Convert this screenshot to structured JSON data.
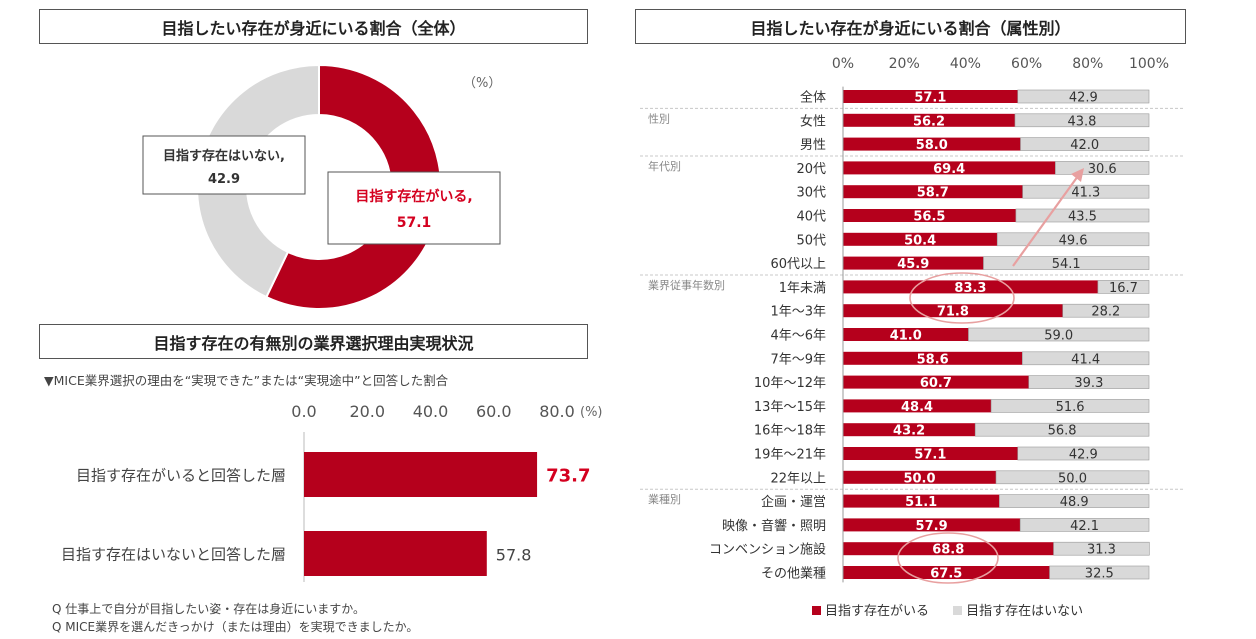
{
  "colors": {
    "yes": "#b5001c",
    "no": "#d9d9d9",
    "highlight": "#e8a0a0",
    "red_text": "#d4001f"
  },
  "donut": {
    "title": "目指したい存在が身近にいる割合（全体）",
    "unit": "（%）",
    "yes_label": "目指す存在がいる,",
    "yes_value": "57.1",
    "no_label": "目指す存在はいない,",
    "no_value": "42.9"
  },
  "reason": {
    "title": "目指す存在の有無別の業界選択理由実現状況",
    "subtitle": "▼MICE業界選択の理由を“実現できた”または“実現途中”と回答した割合",
    "unit": "(%)"
  },
  "questions": {
    "q1": "Q 仕事上で自分が目指したい姿・存在は身近にいますか。",
    "q2": "Q MICE業界を選んだきっかけ（または理由）を実現できましたか。"
  },
  "attr": {
    "title": "目指したい存在が身近にいる割合（属性別）",
    "legend_yes": "目指す存在がいる",
    "legend_no": "目指す存在はいない"
  },
  "chart_data": [
    {
      "type": "pie",
      "title": "目指したい存在が身近にいる割合（全体）",
      "categories": [
        "目指す存在がいる",
        "目指す存在はいない"
      ],
      "values": [
        57.1,
        42.9
      ]
    },
    {
      "type": "bar",
      "title": "目指す存在の有無別の業界選択理由実現状況",
      "categories": [
        "目指す存在がいると回答した層",
        "目指す存在はいないと回答した層"
      ],
      "values": [
        73.7,
        57.8
      ],
      "labels": [
        "73.7",
        "57.8"
      ],
      "xlim": [
        0,
        80
      ],
      "ticks": [
        "0.0",
        "20.0",
        "40.0",
        "60.0",
        "80.0"
      ]
    },
    {
      "type": "bar",
      "title": "目指したい存在が身近にいる割合（属性別）",
      "xlim": [
        0,
        100
      ],
      "ticks": [
        "0%",
        "20%",
        "40%",
        "60%",
        "80%",
        "100%"
      ],
      "groups": [
        "性別",
        "年代別",
        "業界従事年数別",
        "業種別"
      ],
      "categories": [
        "全体",
        "女性",
        "男性",
        "20代",
        "30代",
        "40代",
        "50代",
        "60代以上",
        "1年未満",
        "1年～3年",
        "4年～6年",
        "7年～9年",
        "10年～12年",
        "13年～15年",
        "16年～18年",
        "19年～21年",
        "22年以上",
        "企画・運営",
        "映像・音響・照明",
        "コンベンション施設",
        "その他業種"
      ],
      "series": [
        {
          "name": "目指す存在がいる",
          "values": [
            57.1,
            56.2,
            58.0,
            69.4,
            58.7,
            56.5,
            50.4,
            45.9,
            83.3,
            71.8,
            41.0,
            58.6,
            60.7,
            48.4,
            43.2,
            57.1,
            50.0,
            51.1,
            57.9,
            68.8,
            67.5
          ],
          "labels": [
            "57.1",
            "56.2",
            "58.0",
            "69.4",
            "58.7",
            "56.5",
            "50.4",
            "45.9",
            "83.3",
            "71.8",
            "41.0",
            "58.6",
            "60.7",
            "48.4",
            "43.2",
            "57.1",
            "50.0",
            "51.1",
            "57.9",
            "68.8",
            "67.5"
          ]
        },
        {
          "name": "目指す存在はいない",
          "values": [
            42.9,
            43.8,
            42.0,
            30.6,
            41.3,
            43.5,
            49.6,
            54.1,
            16.7,
            28.2,
            59.0,
            41.4,
            39.3,
            51.6,
            56.8,
            42.9,
            50.0,
            48.9,
            42.1,
            31.3,
            32.5
          ],
          "labels": [
            "42.9",
            "43.8",
            "42.0",
            "30.6",
            "41.3",
            "43.5",
            "49.6",
            "54.1",
            "16.7",
            "28.2",
            "59.0",
            "41.4",
            "39.3",
            "51.6",
            "56.8",
            "42.9",
            "50.0",
            "48.9",
            "42.1",
            "31.3",
            "32.5"
          ]
        }
      ]
    }
  ]
}
